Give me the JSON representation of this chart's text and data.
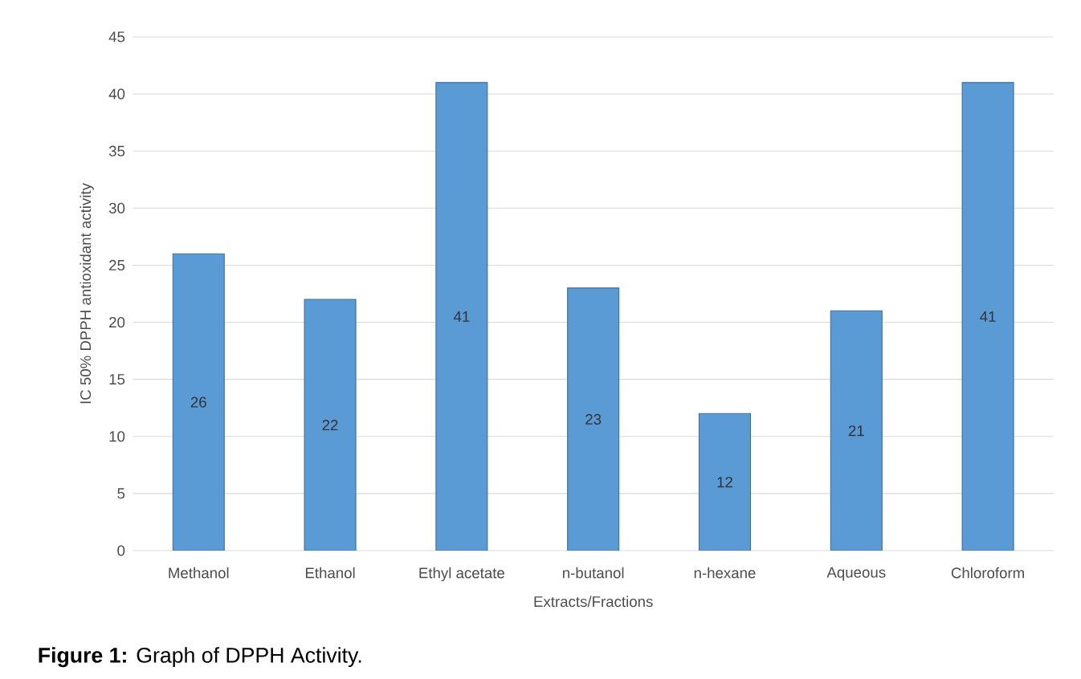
{
  "chart_data": {
    "type": "bar",
    "xlabel": "Extracts/Fractions",
    "ylabel": "IC 50% DPPH antioxidant activity",
    "categories": [
      "Methanol",
      "Ethanol",
      "Ethyl acetate",
      "n-butanol",
      "n-hexane",
      "Aqueous",
      "Chloroform"
    ],
    "values": [
      26,
      22,
      41,
      23,
      12,
      21,
      41
    ],
    "color": "#5b9bd5",
    "ylim": [
      0,
      45
    ],
    "yticks": [
      0,
      5,
      10,
      15,
      20,
      25,
      30,
      35,
      40,
      45
    ],
    "grid": "y",
    "data_labels": true,
    "annotations": [
      "**Figure 1:** Graph of DPPH Activity."
    ]
  }
}
